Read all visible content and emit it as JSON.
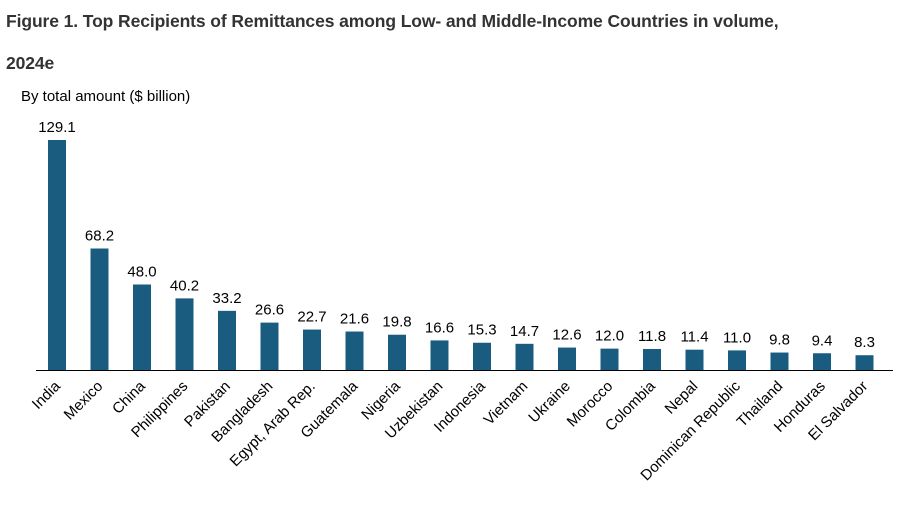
{
  "figure": {
    "title_line1": "Figure 1. Top Recipients of Remittances among Low- and Middle-Income Countries in volume,",
    "title_line2": "2024e"
  },
  "colors": {
    "bar": "#1a5c80",
    "text": "#000000",
    "axis": "#000000",
    "title": "#333333"
  },
  "chart_data": {
    "type": "bar",
    "title": "Figure 1. Top Recipients of Remittances among Low- and Middle-Income Countries in volume, 2024e",
    "ylabel": "By total amount ($ billion)",
    "xlabel": "",
    "ylim": [
      0,
      130
    ],
    "grid": false,
    "categories": [
      "India",
      "Mexico",
      "China",
      "Philippines",
      "Pakistan",
      "Bangladesh",
      "Egypt, Arab Rep.",
      "Guatemala",
      "Nigeria",
      "Uzbekistan",
      "Indonesia",
      "Vietnam",
      "Ukraine",
      "Morocco",
      "Colombia",
      "Nepal",
      "Dominican Republic",
      "Thailand",
      "Honduras",
      "El Salvador"
    ],
    "values": [
      129.1,
      68.2,
      48.0,
      40.2,
      33.2,
      26.6,
      22.7,
      21.6,
      19.8,
      16.6,
      15.3,
      14.7,
      12.6,
      12.0,
      11.8,
      11.4,
      11.0,
      9.8,
      9.4,
      8.3
    ],
    "value_labels": [
      "129.1",
      "68.2",
      "48.0",
      "40.2",
      "33.2",
      "26.6",
      "22.7",
      "21.6",
      "19.8",
      "16.6",
      "15.3",
      "14.7",
      "12.6",
      "12.0",
      "11.8",
      "11.4",
      "11.0",
      "9.8",
      "9.4",
      "8.3"
    ]
  }
}
